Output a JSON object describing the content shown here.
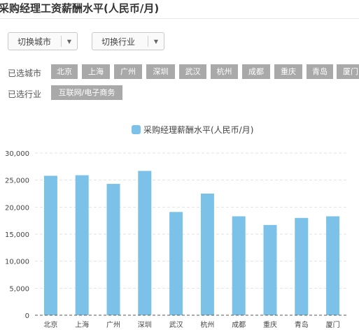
{
  "page": {
    "title": "采购经理工资薪酬水平(人民币/月)"
  },
  "filters": {
    "city_dropdown_label": "切换城市",
    "industry_dropdown_label": "切换行业",
    "dropdown_arrow_icon": "caret-down-icon",
    "selected_cities_label": "已选城市",
    "selected_industry_label": "已选行业",
    "selected_cities": [
      "北京",
      "上海",
      "广州",
      "深圳",
      "武汉",
      "杭州",
      "成都",
      "重庆",
      "青岛",
      "厦门"
    ],
    "selected_industries": [
      "互联网/电子商务"
    ]
  },
  "colors": {
    "bar": "#7cc1e8",
    "grid": "#e2e2e2",
    "baseline": "#555555",
    "tag_bg": "#a9a9a9"
  },
  "chart_data": {
    "type": "bar",
    "title": "",
    "legend": [
      "采购经理薪酬水平(人民币/月)"
    ],
    "legend_position": "top-center",
    "categories": [
      "北京",
      "上海",
      "广州",
      "深圳",
      "武汉",
      "杭州",
      "成都",
      "重庆",
      "青岛",
      "厦门"
    ],
    "series": [
      {
        "name": "采购经理薪酬水平(人民币/月)",
        "values": [
          25800,
          25900,
          24300,
          26700,
          19100,
          22500,
          18300,
          16700,
          18000,
          18300
        ]
      }
    ],
    "y_ticks": [
      "0",
      "5,000",
      "10,000",
      "15,000",
      "20,000",
      "25,000",
      "30,000"
    ],
    "ylim": [
      0,
      30000
    ],
    "grid": true,
    "xlabel": "",
    "ylabel": ""
  }
}
